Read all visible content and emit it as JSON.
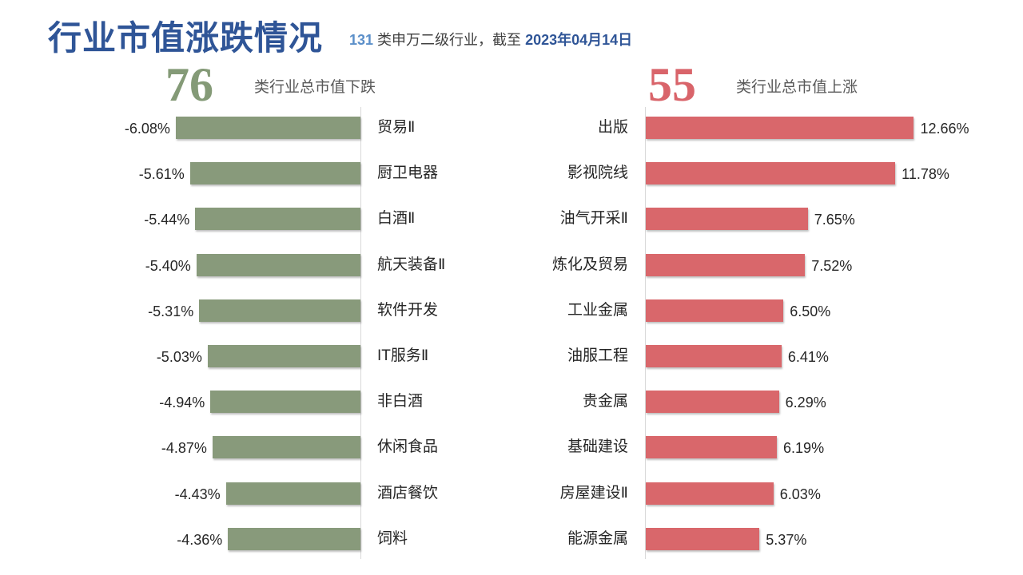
{
  "header": {
    "title": "行业市值涨跌情况",
    "subtitle_count": "131",
    "subtitle_mid": " 类申万二级行业，截至 ",
    "subtitle_date": "2023年04月14日"
  },
  "summary": {
    "down_count": "76",
    "down_label": "类行业总市值下跌",
    "up_count": "55",
    "up_label": "类行业总市值上涨"
  },
  "colors": {
    "down": "#889a7b",
    "up": "#d9676b",
    "title": "#2f5597"
  },
  "chart_data": [
    {
      "type": "bar",
      "orientation": "horizontal",
      "categories": [
        "贸易Ⅱ",
        "厨卫电器",
        "白酒Ⅱ",
        "航天装备Ⅱ",
        "软件开发",
        "IT服务Ⅱ",
        "非白酒",
        "休闲食品",
        "酒店餐饮",
        "饲料"
      ],
      "values": [
        -6.08,
        -5.61,
        -5.44,
        -5.4,
        -5.31,
        -5.03,
        -4.94,
        -4.87,
        -4.43,
        -4.36
      ],
      "labels": [
        "-6.08%",
        "-5.61%",
        "-5.44%",
        "-5.40%",
        "-5.31%",
        "-5.03%",
        "-4.94%",
        "-4.87%",
        "-4.43%",
        "-4.36%"
      ],
      "unit": "%"
    },
    {
      "type": "bar",
      "orientation": "horizontal",
      "categories": [
        "出版",
        "影视院线",
        "油气开采Ⅱ",
        "炼化及贸易",
        "工业金属",
        "油服工程",
        "贵金属",
        "基础建设",
        "房屋建设Ⅱ",
        "能源金属"
      ],
      "values": [
        12.66,
        11.78,
        7.65,
        7.52,
        6.5,
        6.41,
        6.29,
        6.19,
        6.03,
        5.37
      ],
      "labels": [
        "12.66%",
        "11.78%",
        "7.65%",
        "7.52%",
        "6.50%",
        "6.41%",
        "6.29%",
        "6.19%",
        "6.03%",
        "5.37%"
      ],
      "unit": "%"
    }
  ]
}
